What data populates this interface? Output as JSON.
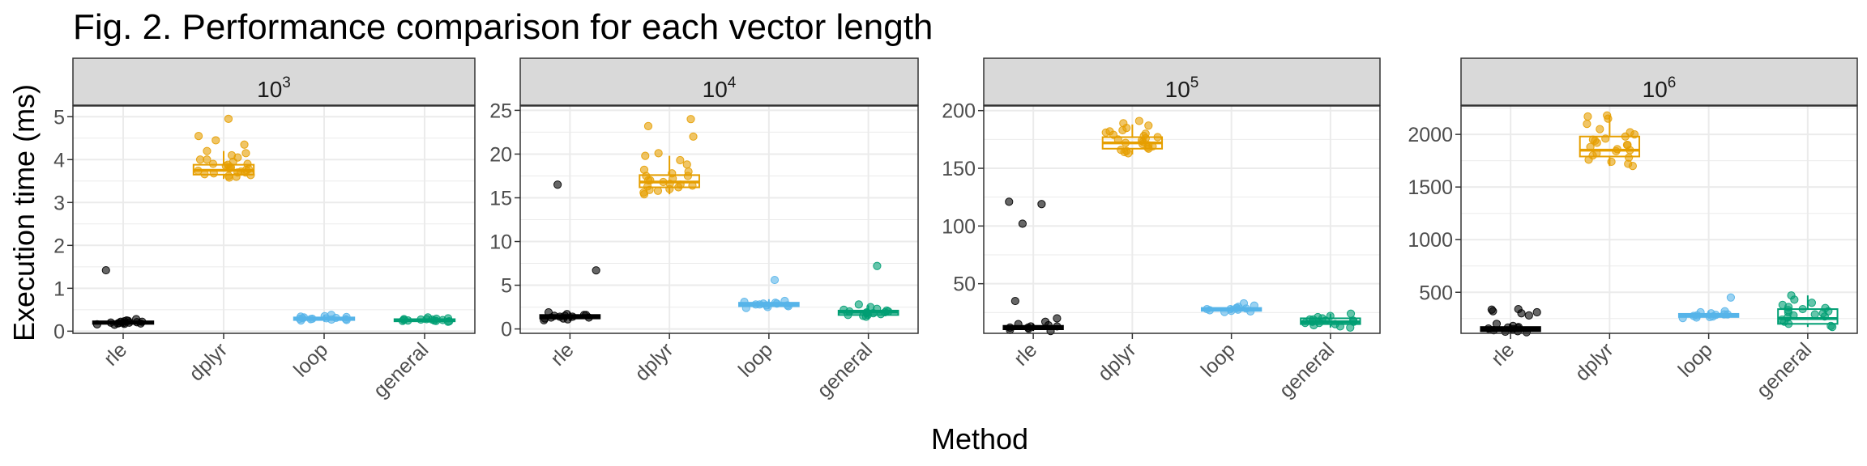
{
  "figure": {
    "title": "Fig. 2. Performance comparison for each vector length",
    "xlabel": "Method",
    "ylabel": "Execution time (ms)"
  },
  "colors": {
    "rle": "#000000",
    "dplyr": "#E69F00",
    "loop": "#56B4E9",
    "general": "#009E73",
    "strip_fill": "#D9D9D9",
    "grid": "#EBEBEB",
    "panel_border": "#333333"
  },
  "chart_data": [
    {
      "type": "box",
      "panel_base": "10",
      "panel_exp": "3",
      "categories": [
        "rle",
        "dplyr",
        "loop",
        "general"
      ],
      "ylim": [
        -0.05,
        5.25
      ],
      "yticks": [
        0,
        1,
        2,
        3,
        4,
        5
      ],
      "boxes": [
        {
          "q1": 0.17,
          "median": 0.2,
          "q3": 0.23,
          "whisker_low": 0.12,
          "whisker_high": 0.27
        },
        {
          "q1": 3.65,
          "median": 3.75,
          "q3": 3.88,
          "whisker_low": 3.55,
          "whisker_high": 4.2
        },
        {
          "q1": 0.26,
          "median": 0.29,
          "q3": 0.32,
          "whisker_low": 0.22,
          "whisker_high": 0.38
        },
        {
          "q1": 0.23,
          "median": 0.26,
          "q3": 0.28,
          "whisker_low": 0.2,
          "whisker_high": 0.32
        }
      ],
      "points": [
        [
          1.42,
          0.28,
          0.25,
          0.22,
          0.2,
          0.18,
          0.21,
          0.19,
          0.17,
          0.23,
          0.16,
          0.24,
          0.2,
          0.18,
          0.22,
          0.15,
          0.19
        ],
        [
          4.95,
          4.55,
          4.45,
          4.35,
          4.2,
          4.15,
          4.1,
          4.05,
          4.0,
          3.95,
          3.9,
          3.88,
          3.85,
          3.82,
          3.8,
          3.78,
          3.76,
          3.74,
          3.72,
          3.7,
          3.68,
          3.66,
          3.64,
          3.62,
          3.6,
          3.58,
          3.7,
          3.8,
          3.9,
          4.0
        ],
        [
          0.38,
          0.35,
          0.33,
          0.31,
          0.3,
          0.29,
          0.28,
          0.27,
          0.26,
          0.25,
          0.32,
          0.34,
          0.29,
          0.28,
          0.3
        ],
        [
          0.32,
          0.3,
          0.29,
          0.28,
          0.27,
          0.26,
          0.25,
          0.24,
          0.23,
          0.22,
          0.27,
          0.26,
          0.25,
          0.28,
          0.24
        ]
      ]
    },
    {
      "type": "box",
      "panel_base": "10",
      "panel_exp": "4",
      "categories": [
        "rle",
        "dplyr",
        "loop",
        "general"
      ],
      "ylim": [
        -0.5,
        25.5
      ],
      "yticks": [
        0,
        5,
        10,
        15,
        20,
        25
      ],
      "boxes": [
        {
          "q1": 1.2,
          "median": 1.4,
          "q3": 1.6,
          "whisker_low": 0.9,
          "whisker_high": 1.9
        },
        {
          "q1": 16.2,
          "median": 16.8,
          "q3": 17.6,
          "whisker_low": 15.4,
          "whisker_high": 19.8
        },
        {
          "q1": 2.6,
          "median": 2.8,
          "q3": 3.0,
          "whisker_low": 2.3,
          "whisker_high": 3.4
        },
        {
          "q1": 1.6,
          "median": 1.9,
          "q3": 2.1,
          "whisker_low": 1.2,
          "whisker_high": 2.7
        }
      ],
      "points": [
        [
          16.5,
          6.7,
          1.9,
          1.7,
          1.6,
          1.5,
          1.4,
          1.3,
          1.2,
          1.1,
          1.0,
          1.5,
          1.4,
          1.3,
          1.6,
          1.2
        ],
        [
          24.0,
          23.2,
          22.0,
          20.1,
          19.8,
          19.3,
          18.8,
          18.2,
          17.8,
          17.5,
          17.2,
          17.0,
          16.8,
          16.6,
          16.4,
          16.2,
          16.0,
          15.8,
          15.6,
          15.4,
          16.5,
          17.0,
          17.5,
          18.0,
          16.3,
          15.9
        ],
        [
          5.6,
          3.2,
          3.0,
          2.9,
          2.8,
          2.7,
          2.6,
          2.5,
          2.4,
          3.1,
          2.8,
          2.7,
          2.9
        ],
        [
          7.2,
          2.8,
          2.5,
          2.3,
          2.1,
          2.0,
          1.9,
          1.8,
          1.7,
          1.6,
          1.5,
          1.4,
          2.2,
          1.9,
          1.8,
          2.0,
          1.6
        ]
      ]
    },
    {
      "type": "box",
      "panel_base": "10",
      "panel_exp": "5",
      "categories": [
        "rle",
        "dplyr",
        "loop",
        "general"
      ],
      "ylim": [
        7,
        204
      ],
      "yticks": [
        50,
        100,
        150,
        200
      ],
      "boxes": [
        {
          "q1": 10.5,
          "median": 12,
          "q3": 13.5,
          "whisker_low": 9,
          "whisker_high": 15.5
        },
        {
          "q1": 167,
          "median": 172,
          "q3": 177,
          "whisker_low": 162,
          "whisker_high": 188
        },
        {
          "q1": 26.5,
          "median": 28,
          "q3": 29,
          "whisker_low": 25,
          "whisker_high": 31
        },
        {
          "q1": 15,
          "median": 17,
          "q3": 20,
          "whisker_low": 12,
          "whisker_high": 24
        }
      ],
      "points": [
        [
          121,
          119,
          102,
          35,
          20,
          17,
          15,
          14,
          13,
          12,
          11,
          10,
          9,
          12,
          13
        ],
        [
          191,
          189,
          187,
          185,
          183,
          181,
          179,
          177,
          176,
          175,
          174,
          173,
          172,
          171,
          170,
          169,
          168,
          167,
          166,
          165,
          164,
          163,
          178,
          180,
          182
        ],
        [
          33,
          31,
          30,
          29,
          28.5,
          28,
          27.5,
          27,
          26.5,
          26,
          25.5,
          28,
          29
        ],
        [
          24,
          22,
          21,
          20,
          19,
          18,
          17,
          16,
          15,
          14,
          13,
          12,
          18,
          17,
          19,
          16
        ]
      ]
    },
    {
      "type": "box",
      "panel_base": "10",
      "panel_exp": "6",
      "categories": [
        "rle",
        "dplyr",
        "loop",
        "general"
      ],
      "ylim": [
        110,
        2270
      ],
      "yticks": [
        500,
        1000,
        1500,
        2000
      ],
      "boxes": [
        {
          "q1": 130,
          "median": 150,
          "q3": 170,
          "whisker_low": 115,
          "whisker_high": 200
        },
        {
          "q1": 1790,
          "median": 1850,
          "q3": 1980,
          "whisker_low": 1700,
          "whisker_high": 2180
        },
        {
          "q1": 265,
          "median": 280,
          "q3": 295,
          "whisker_low": 250,
          "whisker_high": 320
        },
        {
          "q1": 200,
          "median": 250,
          "q3": 340,
          "whisker_low": 170,
          "whisker_high": 470
        }
      ],
      "points": [
        [
          340,
          335,
          320,
          310,
          300,
          280,
          200,
          180,
          170,
          160,
          150,
          140,
          130,
          125,
          120,
          155,
          165
        ],
        [
          2180,
          2170,
          2150,
          2100,
          2050,
          2020,
          2000,
          1980,
          1960,
          1940,
          1920,
          1900,
          1880,
          1860,
          1840,
          1820,
          1800,
          1780,
          1760,
          1740,
          1720,
          1700,
          1850,
          1900,
          1950
        ],
        [
          450,
          320,
          310,
          300,
          290,
          285,
          280,
          275,
          270,
          265,
          260,
          255,
          290
        ],
        [
          470,
          430,
          400,
          380,
          360,
          350,
          340,
          330,
          320,
          300,
          280,
          260,
          240,
          220,
          200,
          180,
          170,
          310,
          290,
          270
        ]
      ]
    }
  ]
}
